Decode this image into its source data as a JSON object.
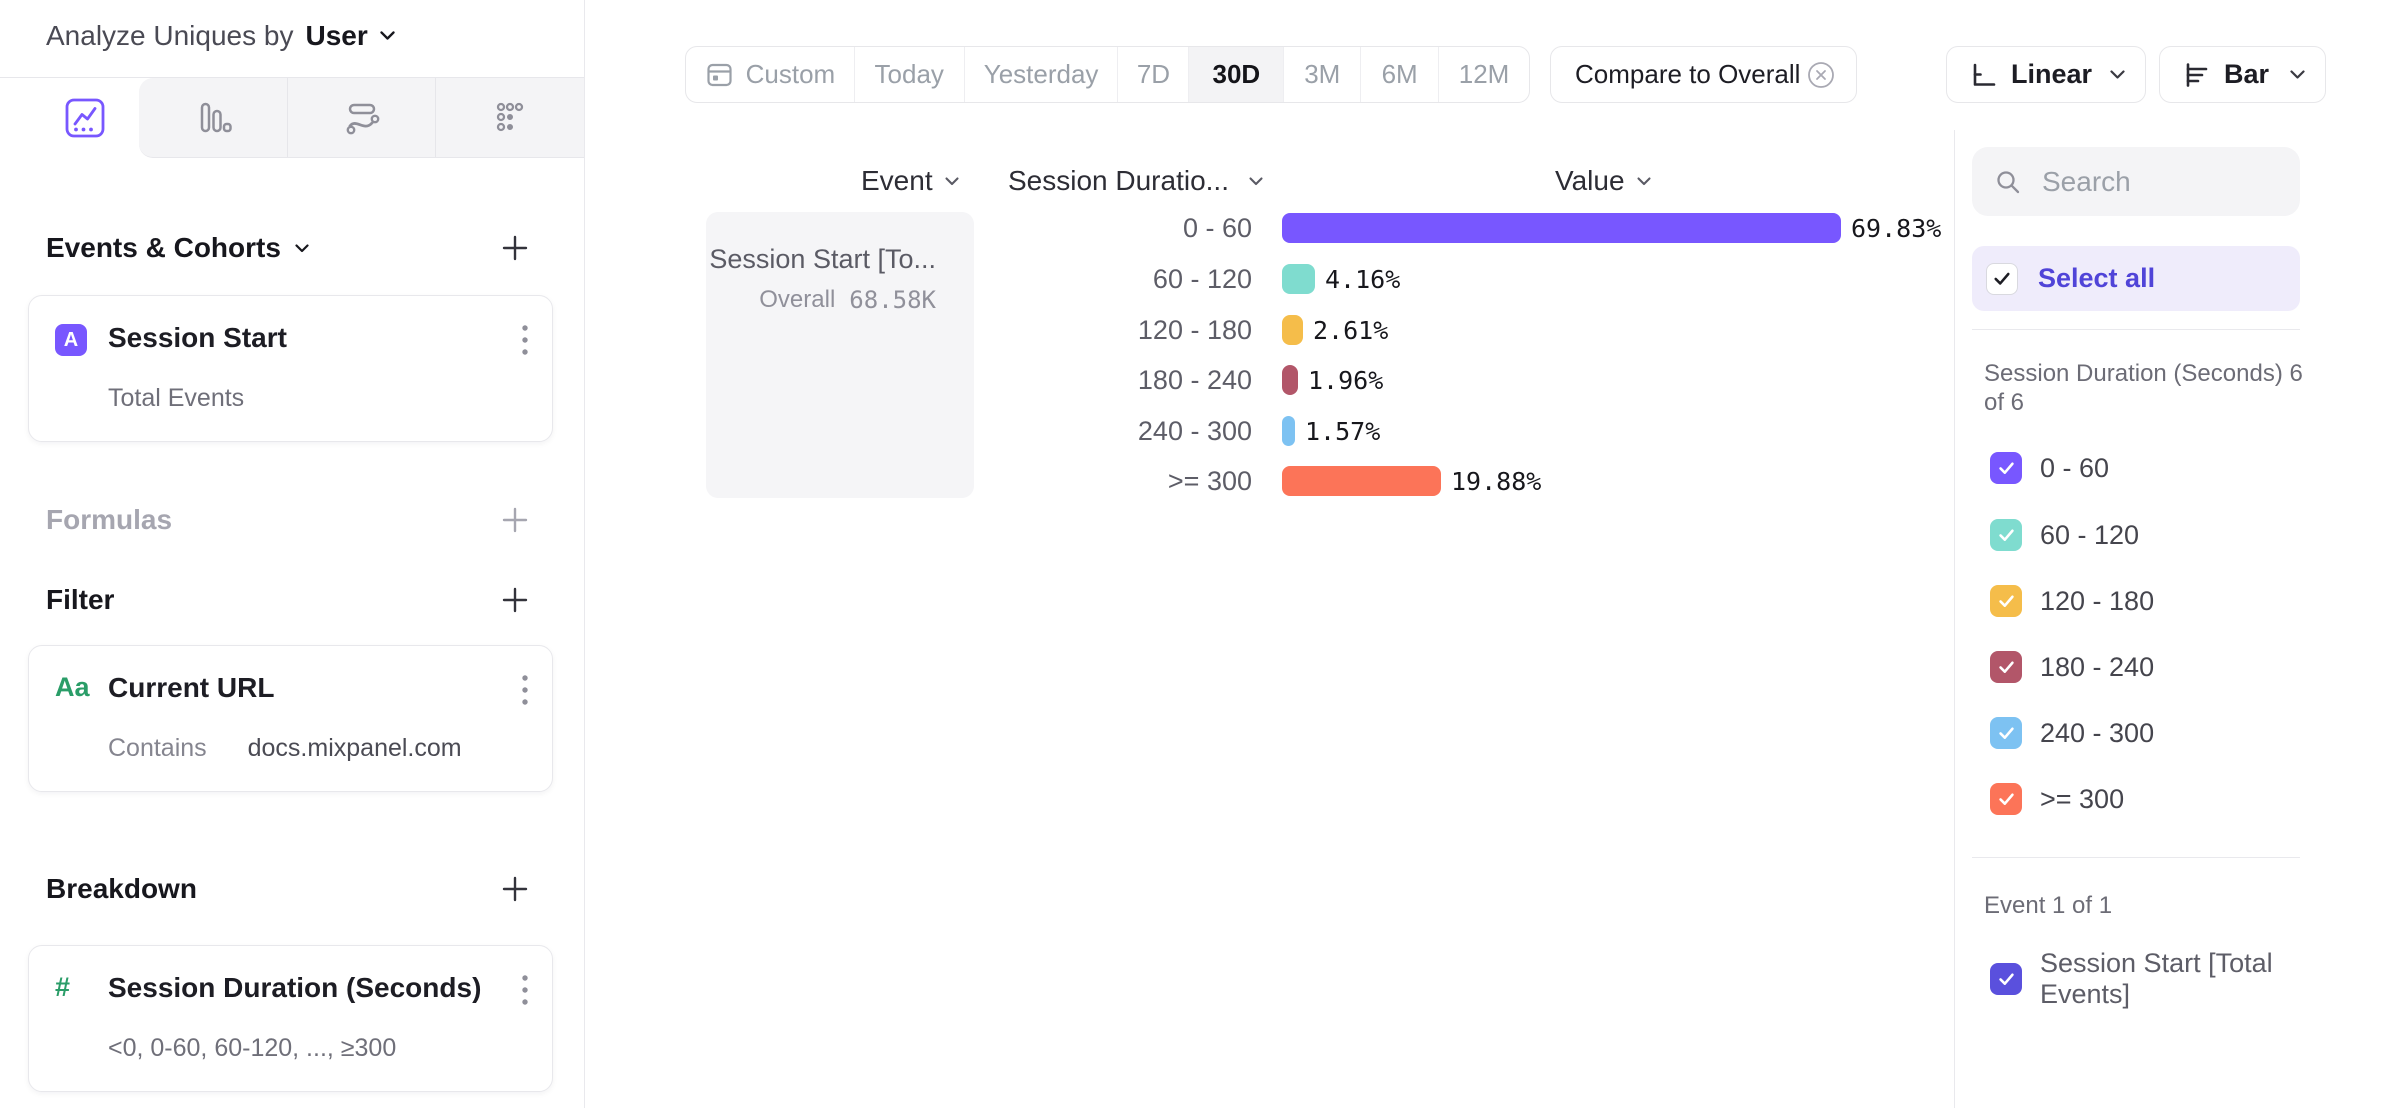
{
  "colors": {
    "accent": "#7857ff",
    "indigo": "#5a50dd",
    "green": "#2a9d68",
    "select_all_text": "#5044d8"
  },
  "header": {
    "prefix": "Analyze Uniques by",
    "entity": "User"
  },
  "sidebar": {
    "events_section": {
      "title": "Events & Cohorts"
    },
    "event_card": {
      "badge": "A",
      "title": "Session Start",
      "subtitle": "Total Events"
    },
    "formulas_section": {
      "title": "Formulas"
    },
    "filter_section": {
      "title": "Filter"
    },
    "filter_card": {
      "icon": "Aa",
      "title": "Current URL",
      "operator": "Contains",
      "value": "docs.mixpanel.com"
    },
    "breakdown_section": {
      "title": "Breakdown"
    },
    "breakdown_card": {
      "icon": "#",
      "title": "Session Duration (Seconds)",
      "subtitle": "<0, 0-60, 60-120, ..., ≥300"
    }
  },
  "toolbar": {
    "ranges": [
      "Custom",
      "Today",
      "Yesterday",
      "7D",
      "30D",
      "3M",
      "6M",
      "12M"
    ],
    "active_range": "30D",
    "compare_label": "Compare to Overall",
    "scale_label": "Linear",
    "chart_type_label": "Bar"
  },
  "table": {
    "columns": {
      "event": "Event",
      "breakdown": "Session Duratio...",
      "value": "Value"
    },
    "event_cell": {
      "title": "Session Start [To...",
      "overall_label": "Overall",
      "overall_value": "68.58K"
    }
  },
  "chart_data": {
    "type": "bar",
    "orientation": "horizontal",
    "title": "",
    "categories": [
      "0 - 60",
      "60 - 120",
      "120 - 180",
      "180 - 240",
      "240 - 300",
      ">= 300"
    ],
    "values": [
      69.83,
      4.16,
      2.61,
      1.96,
      1.57,
      19.88
    ],
    "value_labels": [
      "69.83%",
      "4.16%",
      "2.61%",
      "1.96%",
      "1.57%",
      "19.88%"
    ],
    "unit": "%",
    "series_name": "Session Start [Total Events]",
    "overall_value": "68.58K",
    "colors": [
      "#7857ff",
      "#7fdccf",
      "#f5bd4a",
      "#b25669",
      "#7dc2f2",
      "#fc7458"
    ],
    "xlim": [
      0,
      100
    ],
    "grid": false,
    "legend_position": "right-panel-checkboxes"
  },
  "right_panel": {
    "search_placeholder": "Search",
    "select_all_label": "Select all",
    "group_label": "Session Duration (Seconds) 6 of 6",
    "all_checked": true,
    "event_group_label": "Event 1 of 1",
    "event_item_label": "Session Start [Total Events]"
  }
}
